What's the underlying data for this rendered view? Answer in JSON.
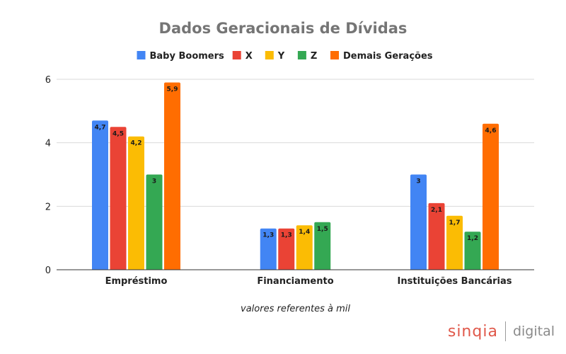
{
  "chart_data": {
    "type": "bar",
    "title": "Dados Geracionais de Dívidas",
    "xlabel": "valores referentes à mil",
    "ylabel": "",
    "ylim": [
      0,
      6
    ],
    "yticks": [
      "0",
      "2",
      "4",
      "6"
    ],
    "grid": true,
    "legend_position": "top",
    "categories": [
      "Empréstimo",
      "Financiamento",
      "Instituições Bancárias"
    ],
    "series": [
      {
        "name": "Baby Boomers",
        "color": "#4285f4",
        "values": [
          4.7,
          1.3,
          3.0
        ],
        "labels": [
          "4,7",
          "1,3",
          "3"
        ]
      },
      {
        "name": "X",
        "color": "#ea4335",
        "values": [
          4.5,
          1.3,
          2.1
        ],
        "labels": [
          "4,5",
          "1,3",
          "2,1"
        ]
      },
      {
        "name": "Y",
        "color": "#fbbc04",
        "values": [
          4.2,
          1.4,
          1.7
        ],
        "labels": [
          "4,2",
          "1,4",
          "1,7"
        ]
      },
      {
        "name": "Z",
        "color": "#34a853",
        "values": [
          3.0,
          1.5,
          1.2
        ],
        "labels": [
          "3",
          "1,5",
          "1,2"
        ]
      },
      {
        "name": "Demais Gerações",
        "color": "#ff6d01",
        "values": [
          5.9,
          null,
          4.6
        ],
        "labels": [
          "5,9",
          "",
          "4,6"
        ]
      }
    ]
  },
  "brand": {
    "name": "sinqia",
    "tag": "digital"
  }
}
